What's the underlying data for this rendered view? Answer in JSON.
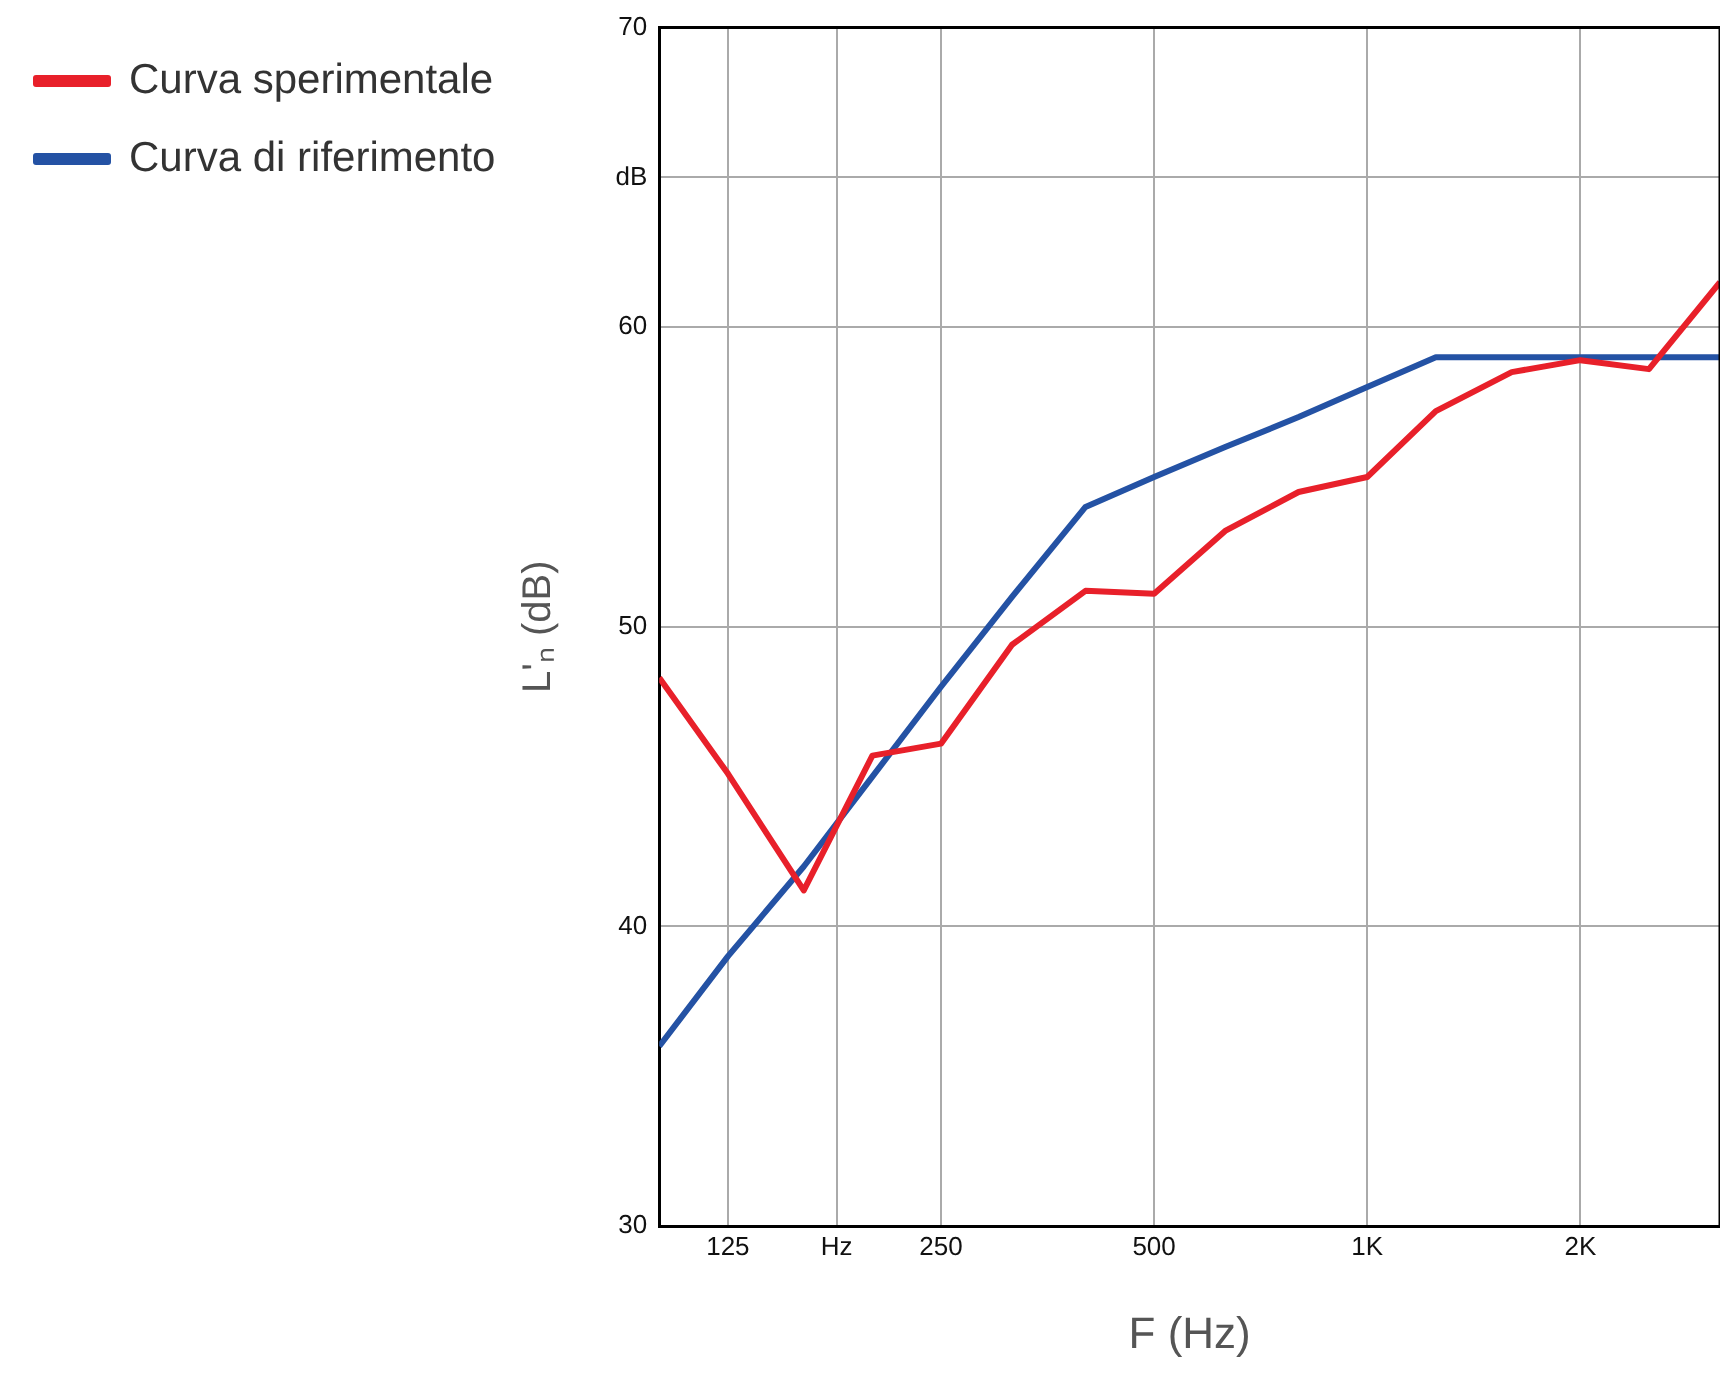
{
  "chart_data": {
    "type": "line",
    "xlabel": "F (Hz)",
    "ylabel": "L'ₙ (dB)",
    "x": [
      100,
      125,
      160,
      200,
      250,
      315,
      400,
      500,
      630,
      800,
      1000,
      1250,
      1600,
      2000,
      2500,
      3150
    ],
    "series": [
      {
        "name": "Curva sperimentale",
        "color": "#e8202a",
        "values": [
          48.3,
          45.1,
          41.2,
          45.7,
          46.1,
          49.4,
          51.2,
          51.1,
          53.2,
          54.5,
          55.0,
          57.2,
          58.5,
          58.9,
          58.6,
          61.5
        ]
      },
      {
        "name": "Curva di riferimento",
        "color": "#2452a4",
        "values": [
          36,
          39,
          42,
          45,
          48,
          51,
          54,
          55,
          56,
          57,
          58,
          59,
          59,
          59,
          59,
          59
        ]
      }
    ],
    "log": "x",
    "xlim": [
      100,
      3150
    ],
    "xticks": [
      125,
      {
        "value": 178,
        "label": "Hz"
      },
      250,
      500,
      {
        "value": 1000,
        "label": "1K"
      },
      {
        "value": 2000,
        "label": "2K"
      }
    ],
    "ylim": [
      30,
      70
    ],
    "yticks": [
      30,
      40,
      50,
      60,
      {
        "value": 65,
        "label": "dB"
      },
      70
    ],
    "grid": true,
    "legend": "top left",
    "marker": "none",
    "line_style": "solid"
  }
}
